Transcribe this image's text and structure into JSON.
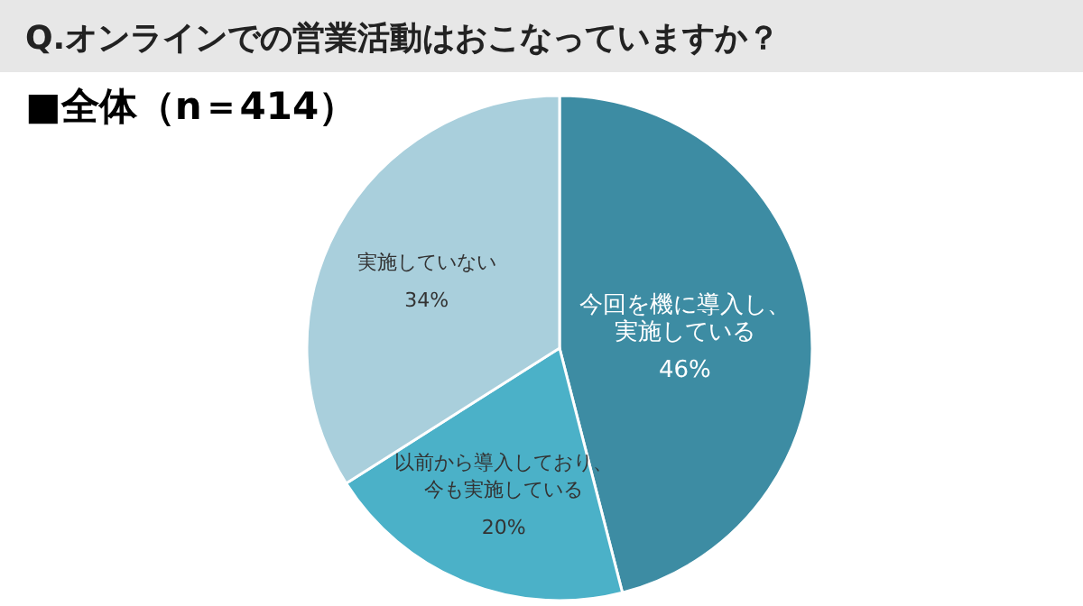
{
  "chart_data": {
    "type": "pie",
    "title": "Q.オンラインでの営業活動はおこなっていますか？",
    "subtitle": "■全体（n＝414）",
    "categories": [
      "今回を機に導入し、実施している",
      "以前から導入しており、今も実施している",
      "実施していない"
    ],
    "values": [
      46,
      20,
      34
    ],
    "value_labels": [
      "46%",
      "20%",
      "34%"
    ],
    "colors": [
      "#3d8ca3",
      "#4bb1c8",
      "#a9cfdc"
    ]
  }
}
